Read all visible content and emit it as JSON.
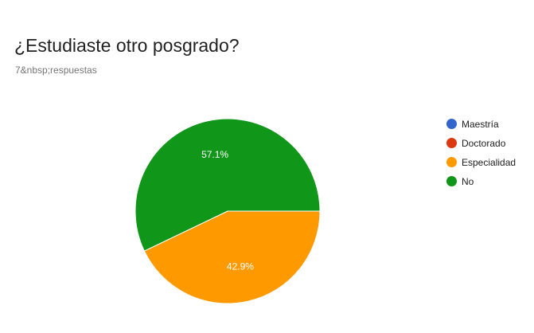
{
  "header": {
    "title": "¿Estudiaste otro posgrado?",
    "subtitle": "7&nbsp;respuestas"
  },
  "chart_data": {
    "type": "pie",
    "title": "¿Estudiaste otro posgrado?",
    "start_angle_deg": 90,
    "direction": "clockwise",
    "legend_position": "right",
    "slices": [
      {
        "label": "Maestría",
        "value": 0,
        "color": "#3366cc"
      },
      {
        "label": "Doctorado",
        "value": 0,
        "color": "#dc3912"
      },
      {
        "label": "Especialidad",
        "value": 42.9,
        "color": "#ff9900",
        "data_label": "42.9%"
      },
      {
        "label": "No",
        "value": 57.1,
        "color": "#109618",
        "data_label": "57.1%"
      }
    ]
  }
}
